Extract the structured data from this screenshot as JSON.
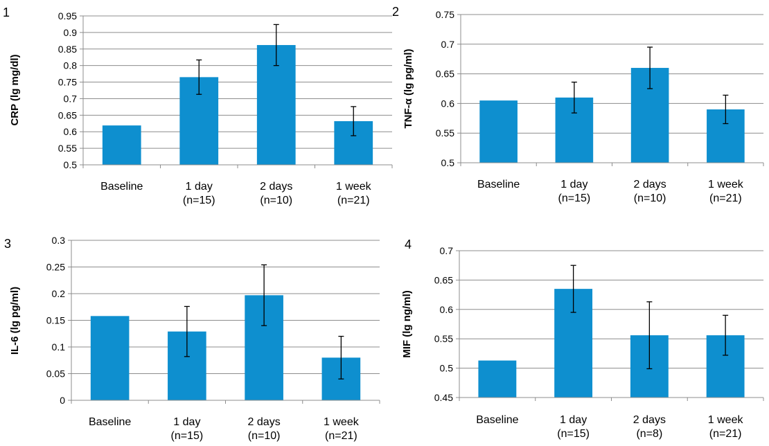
{
  "chart_data": [
    {
      "type": "bar",
      "panel_number": "1",
      "ylabel": "CRP (lg mg/dl)",
      "ylim": [
        0.5,
        0.95
      ],
      "yticks": [
        "0.5",
        "0.55",
        "0.6",
        "0.65",
        "0.7",
        "0.75",
        "0.8",
        "0.85",
        "0.9",
        "0.95"
      ],
      "categories": [
        [
          "Baseline"
        ],
        [
          "1 day",
          "(n=15)"
        ],
        [
          "2 days",
          "(n=10)"
        ],
        [
          "1 week",
          "(n=21)"
        ]
      ],
      "values": [
        0.619,
        0.765,
        0.862,
        0.632
      ],
      "errors": [
        null,
        0.052,
        0.062,
        0.044
      ],
      "bar_color": "#0e8fcf",
      "grid": true
    },
    {
      "type": "bar",
      "panel_number": "2",
      "ylabel": "TNF-α (lg pg/ml)",
      "ylim": [
        0.5,
        0.75
      ],
      "yticks": [
        "0.5",
        "0.55",
        "0.6",
        "0.65",
        "0.7",
        "0.75"
      ],
      "categories": [
        [
          "Baseline"
        ],
        [
          "1 day",
          "(n=15)"
        ],
        [
          "2 days",
          "(n=10)"
        ],
        [
          "1 week",
          "(n=21)"
        ]
      ],
      "values": [
        0.605,
        0.61,
        0.66,
        0.59
      ],
      "errors": [
        null,
        0.026,
        0.035,
        0.024
      ],
      "bar_color": "#0e8fcf",
      "grid": true
    },
    {
      "type": "bar",
      "panel_number": "3",
      "ylabel": "IL-6 (lg pg/ml)",
      "ylim": [
        0,
        0.3
      ],
      "yticks": [
        "0",
        "0.05",
        "0.1",
        "0.15",
        "0.2",
        "0.25",
        "0.3"
      ],
      "categories": [
        [
          "Baseline"
        ],
        [
          "1 day",
          "(n=15)"
        ],
        [
          "2 days",
          "(n=10)"
        ],
        [
          "1 week",
          "(n=21)"
        ]
      ],
      "values": [
        0.158,
        0.129,
        0.197,
        0.08
      ],
      "errors": [
        null,
        0.047,
        0.057,
        0.04
      ],
      "bar_color": "#0e8fcf",
      "grid": true
    },
    {
      "type": "bar",
      "panel_number": "4",
      "ylabel": "MIF (lg ng/ml)",
      "ylim": [
        0.45,
        0.7
      ],
      "yticks": [
        "0.45",
        "0.5",
        "0.55",
        "0.6",
        "0.65",
        "0.7"
      ],
      "categories": [
        [
          "Baseline"
        ],
        [
          "1 day",
          "(n=15)"
        ],
        [
          "2 days",
          "(n=8)"
        ],
        [
          "1 week",
          "(n=21)"
        ]
      ],
      "values": [
        0.513,
        0.635,
        0.556,
        0.556
      ],
      "errors": [
        null,
        0.04,
        0.057,
        0.034
      ],
      "bar_color": "#0e8fcf",
      "grid": true
    }
  ]
}
